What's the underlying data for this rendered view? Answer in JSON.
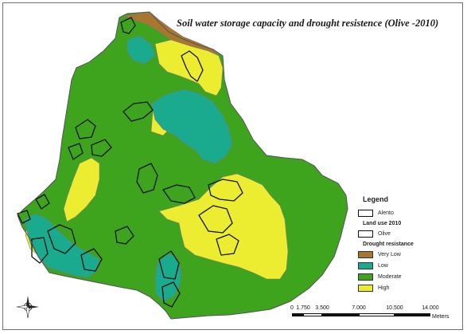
{
  "map": {
    "title": "Soil water storage capacity and drought resistence (Olive -2010)"
  },
  "legend": {
    "title": "Legend",
    "aleno_label": "Alento",
    "land_use_title": "Land use 2010",
    "olive_label": "Olive",
    "drought_title": "Drought resistance",
    "classes": [
      {
        "label": "Very Low",
        "color": "#a8762f"
      },
      {
        "label": "Low",
        "color": "#1aaa8e"
      },
      {
        "label": "Moderate",
        "color": "#3ea41e"
      },
      {
        "label": "High",
        "color": "#ecec31"
      }
    ]
  },
  "scalebar": {
    "ticks": [
      "0",
      "1.750",
      "3.500",
      "7.000",
      "10.500",
      "14.000"
    ],
    "unit": "Meters"
  },
  "north_arrow": {
    "icon": "north-arrow-icon"
  }
}
